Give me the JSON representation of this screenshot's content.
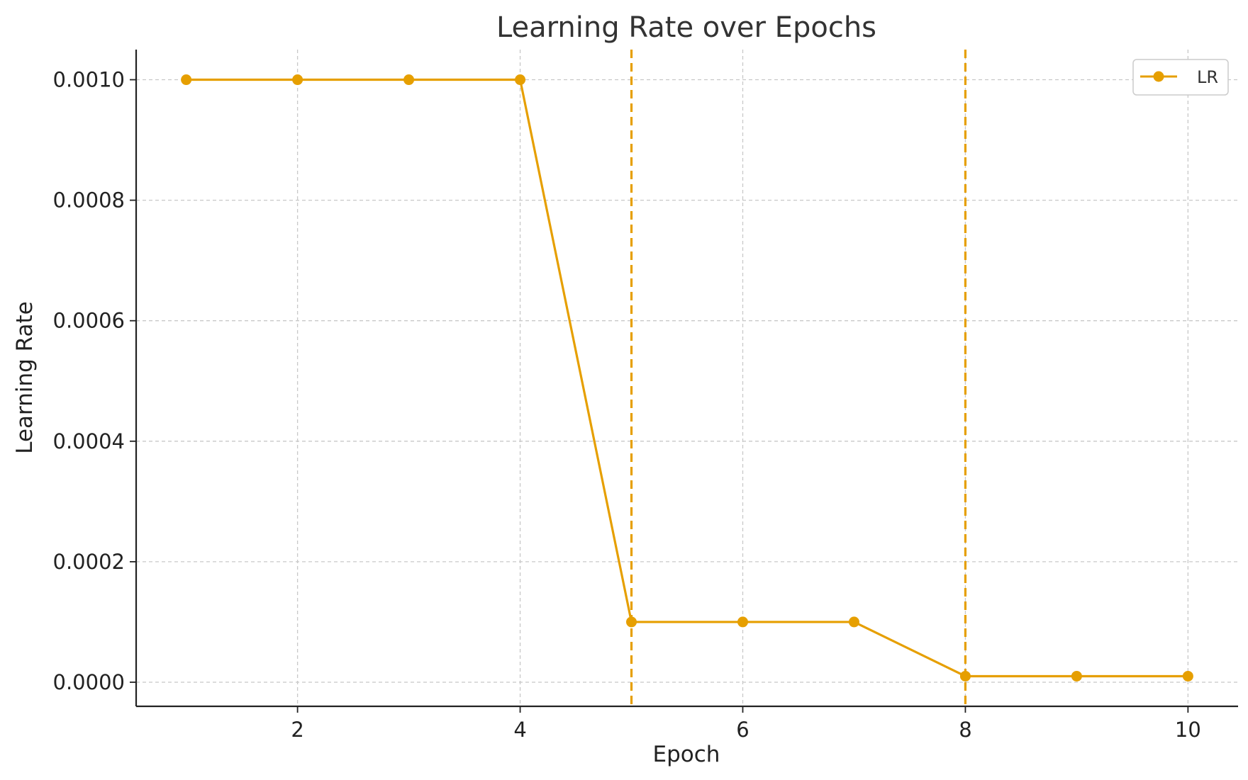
{
  "chart_data": {
    "type": "line",
    "title": "Learning Rate over Epochs",
    "xlabel": "Epoch",
    "ylabel": "Learning Rate",
    "xlim": [
      0.55,
      10.45
    ],
    "ylim": [
      -4e-05,
      0.00105
    ],
    "xticks": [
      2,
      4,
      6,
      8,
      10
    ],
    "xtick_labels": [
      "2",
      "4",
      "6",
      "8",
      "10"
    ],
    "yticks": [
      0.0,
      0.0002,
      0.0004,
      0.0006,
      0.0008,
      0.001
    ],
    "ytick_labels": [
      "0.0000",
      "0.0002",
      "0.0004",
      "0.0006",
      "0.0008",
      "0.0010"
    ],
    "grid": true,
    "legend_position": "top-right",
    "series": [
      {
        "name": "LR",
        "color": "#E69F00",
        "marker": "circle",
        "x": [
          1,
          2,
          3,
          4,
          5,
          6,
          7,
          8,
          9,
          10
        ],
        "y": [
          0.001,
          0.001,
          0.001,
          0.001,
          0.0001,
          0.0001,
          0.0001,
          1e-05,
          1e-05,
          1e-05
        ]
      }
    ],
    "vertical_lines": [
      {
        "x": 5,
        "color": "#E69F00",
        "style": "dashed"
      },
      {
        "x": 8,
        "color": "#E69F00",
        "style": "dashed"
      }
    ]
  }
}
